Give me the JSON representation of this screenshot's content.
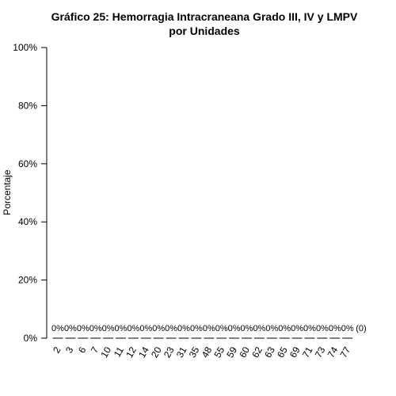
{
  "chart_data": {
    "type": "bar",
    "title": "Gráfico 25: Hemorragia Intracraneana Grado III, IV y LMPV",
    "subtitle": "por Unidades",
    "xlabel": "",
    "ylabel": "Porcentaje",
    "ylim": [
      0,
      100
    ],
    "y_ticks": [
      "0%",
      "20%",
      "40%",
      "60%",
      "80%",
      "100%"
    ],
    "y_tick_values": [
      0,
      20,
      40,
      60,
      80,
      100
    ],
    "categories": [
      "2",
      "3",
      "6",
      "7",
      "10",
      "11",
      "12",
      "14",
      "20",
      "23",
      "31",
      "35",
      "48",
      "55",
      "59",
      "60",
      "62",
      "63",
      "65",
      "69",
      "71",
      "73",
      "74",
      "77"
    ],
    "values": [
      0,
      0,
      0,
      0,
      0,
      0,
      0,
      0,
      0,
      0,
      0,
      0,
      0,
      0,
      0,
      0,
      0,
      0,
      0,
      0,
      0,
      0,
      0,
      0
    ],
    "data_labels": [
      "0%",
      "0%",
      "0%",
      "0%",
      "0%",
      "0%",
      "0%",
      "0%",
      "0%",
      "0%",
      "0%",
      "0%",
      "0%",
      "0%",
      "0%",
      "0%",
      "0%",
      "0%",
      "0%",
      "0%",
      "0%",
      "0%",
      "0%",
      "0%"
    ],
    "extra_label": "(0)",
    "grid": false,
    "bar_color": "#000000"
  }
}
